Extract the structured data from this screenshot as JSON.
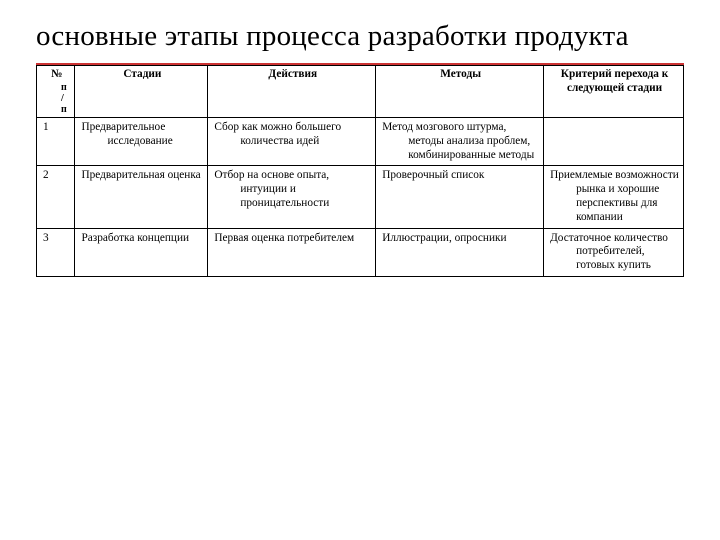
{
  "title": "основные этапы процесса разработки продукта",
  "accent_color": "#cc3333",
  "headers": {
    "num": "№",
    "num_sub": "п\n/\nп",
    "col1": "Стадии",
    "col2": "Действия",
    "col3": "Методы",
    "col4": "Критерий перехода к следующей стадии"
  },
  "rows": [
    {
      "n": "1",
      "stage": "Предварительное исследование",
      "action": "Сбор как можно большего количества идей",
      "method": "Метод мозгового штурма, методы анализа проблем, комбинированные методы",
      "crit": ""
    },
    {
      "n": "2",
      "stage": "Предварительная оценка",
      "action": "Отбор на основе опыта, интуиции и проницательности",
      "method": "Проверочный список",
      "crit": "Приемлемые возможности рынка и хорошие перспективы для компании"
    },
    {
      "n": "3",
      "stage": "Разработка концепции",
      "action": "Первая оценка потребителем",
      "method": "Иллюстрации, опросники",
      "crit": "Достаточное количество потребителей, готовых купить"
    }
  ],
  "column_widths_pct": [
    5.5,
    19,
    24,
    24,
    20
  ],
  "font": {
    "title_size_pt": 22,
    "body_size_pt": 8.5,
    "family": "Times New Roman"
  },
  "colors": {
    "background": "#ffffff",
    "text": "#000000",
    "border": "#000000"
  }
}
